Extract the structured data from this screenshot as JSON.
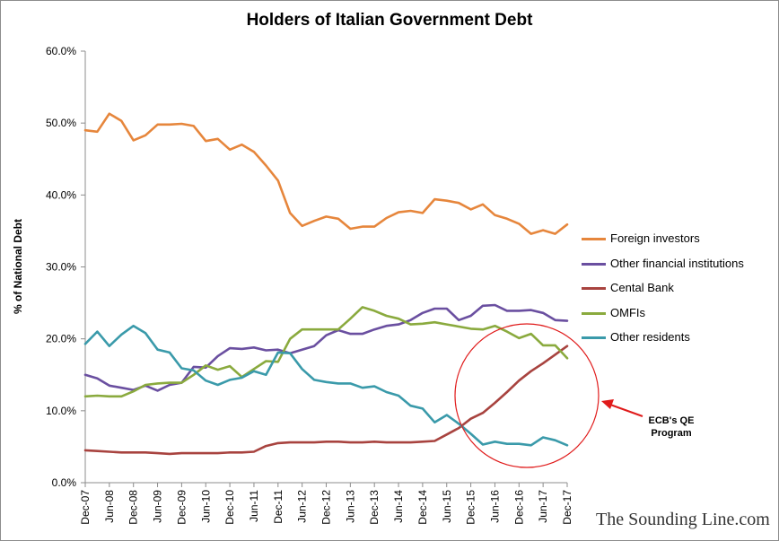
{
  "chart_data": {
    "type": "line",
    "title": "Holders of Italian Government Debt",
    "ylabel": "% of National Debt",
    "xlabel": "",
    "ylim": [
      0,
      60
    ],
    "yticks": [
      0,
      10,
      20,
      30,
      40,
      50,
      60
    ],
    "ytick_labels": [
      "0.0%",
      "10.0%",
      "20.0%",
      "30.0%",
      "40.0%",
      "50.0%",
      "60.0%"
    ],
    "x_tick_labels": [
      "Dec-07",
      "Jun-08",
      "Dec-08",
      "Jun-09",
      "Dec-09",
      "Jun-10",
      "Dec-10",
      "Jun-11",
      "Dec-11",
      "Jun-12",
      "Dec-12",
      "Jun-13",
      "Dec-13",
      "Jun-14",
      "Dec-14",
      "Jun-15",
      "Dec-15",
      "Jun-16",
      "Dec-16",
      "Jun-17",
      "Dec-17"
    ],
    "grid": false,
    "legend_position": "right",
    "series": [
      {
        "name": "Foreign investors",
        "color": "#e6863c",
        "values": [
          49.0,
          48.8,
          51.3,
          50.3,
          47.6,
          48.3,
          49.8,
          49.8,
          49.9,
          49.6,
          47.5,
          47.8,
          46.3,
          47.0,
          46.0,
          44.1,
          42.0,
          37.5,
          35.7,
          36.4,
          37.0,
          36.7,
          35.3,
          35.6,
          35.6,
          36.8,
          37.6,
          37.8,
          37.5,
          39.4,
          39.2,
          38.9,
          38.0,
          38.7,
          37.2,
          36.7,
          36.0,
          34.6,
          35.1,
          34.6,
          35.9
        ]
      },
      {
        "name": "Other financial institutions",
        "color": "#6a4fa0",
        "values": [
          15.0,
          14.5,
          13.5,
          13.2,
          12.9,
          13.5,
          12.8,
          13.6,
          13.9,
          16.1,
          16.0,
          17.6,
          18.7,
          18.6,
          18.8,
          18.4,
          18.5,
          18.0,
          18.5,
          19.0,
          20.5,
          21.2,
          20.7,
          20.7,
          21.3,
          21.8,
          22.0,
          22.6,
          23.6,
          24.2,
          24.2,
          22.6,
          23.2,
          24.6,
          24.7,
          23.9,
          23.9,
          24.0,
          23.6,
          22.6,
          22.5
        ]
      },
      {
        "name": "Cental Bank",
        "color": "#a8433f",
        "values": [
          4.5,
          4.4,
          4.3,
          4.2,
          4.2,
          4.2,
          4.1,
          4.0,
          4.1,
          4.1,
          4.1,
          4.1,
          4.2,
          4.2,
          4.3,
          5.1,
          5.5,
          5.6,
          5.6,
          5.6,
          5.7,
          5.7,
          5.6,
          5.6,
          5.7,
          5.6,
          5.6,
          5.6,
          5.7,
          5.8,
          6.7,
          7.6,
          8.9,
          9.7,
          11.1,
          12.6,
          14.2,
          15.5,
          16.6,
          17.8,
          19.0
        ]
      },
      {
        "name": "OMFIs",
        "color": "#8aaa3e",
        "values": [
          12.0,
          12.1,
          12.0,
          12.0,
          12.7,
          13.6,
          13.8,
          13.9,
          13.9,
          15.0,
          16.3,
          15.7,
          16.2,
          14.7,
          15.8,
          16.9,
          16.8,
          20.0,
          21.3,
          21.3,
          21.3,
          21.3,
          22.8,
          24.4,
          23.9,
          23.2,
          22.8,
          22.0,
          22.1,
          22.3,
          22.0,
          21.7,
          21.4,
          21.3,
          21.8,
          21.0,
          20.1,
          20.7,
          19.1,
          19.1,
          17.3
        ]
      },
      {
        "name": "Other residents",
        "color": "#3a9aaa",
        "values": [
          19.3,
          21.0,
          19.0,
          20.6,
          21.8,
          20.8,
          18.5,
          18.1,
          15.9,
          15.6,
          14.2,
          13.6,
          14.3,
          14.6,
          15.5,
          15.0,
          18.1,
          18.0,
          15.8,
          14.3,
          14.0,
          13.8,
          13.8,
          13.2,
          13.4,
          12.6,
          12.1,
          10.7,
          10.3,
          8.4,
          9.4,
          8.2,
          6.8,
          5.3,
          5.7,
          5.4,
          5.4,
          5.2,
          6.3,
          5.9,
          5.2
        ]
      }
    ],
    "annotations": [
      {
        "text": "ECB's QE Program",
        "color": "#e01b1b"
      }
    ]
  },
  "watermark": "The Sounding Line.com"
}
